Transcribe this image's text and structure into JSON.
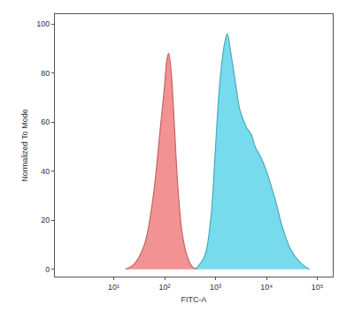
{
  "chart_data": {
    "type": "area",
    "x_label": "FITC-A",
    "y_label": "Normalized To Mode",
    "log": "x",
    "grid": false,
    "xlim": [
      0.7,
      200000
    ],
    "xticks": [
      {
        "value": 10,
        "label": "10¹"
      },
      {
        "value": 100,
        "label": "10²"
      },
      {
        "value": 1000,
        "label": "10³"
      },
      {
        "value": 10000,
        "label": "10⁴"
      },
      {
        "value": 100000,
        "label": "10⁵"
      }
    ],
    "ylim": [
      -3,
      104
    ],
    "yticks": [
      0,
      20,
      40,
      60,
      80,
      100
    ],
    "series": [
      {
        "color": "#f07f7f",
        "x": [
          17,
          25,
          40,
          60,
          80,
          100,
          110,
          120,
          135,
          150,
          180,
          220,
          280,
          350,
          450
        ],
        "values": [
          0,
          2,
          10,
          30,
          55,
          75,
          85,
          88,
          80,
          65,
          35,
          15,
          5,
          1,
          0
        ]
      },
      {
        "color": "#5fd3ea",
        "x": [
          400,
          600,
          800,
          1000,
          1200,
          1500,
          1700,
          2000,
          2500,
          3000,
          4000,
          5000,
          6000,
          8000,
          10000,
          15000,
          20000,
          30000,
          50000,
          70000
        ],
        "values": [
          0,
          5,
          20,
          50,
          75,
          92,
          96,
          88,
          75,
          65,
          58,
          55,
          50,
          45,
          40,
          28,
          18,
          8,
          2,
          0
        ]
      }
    ]
  }
}
